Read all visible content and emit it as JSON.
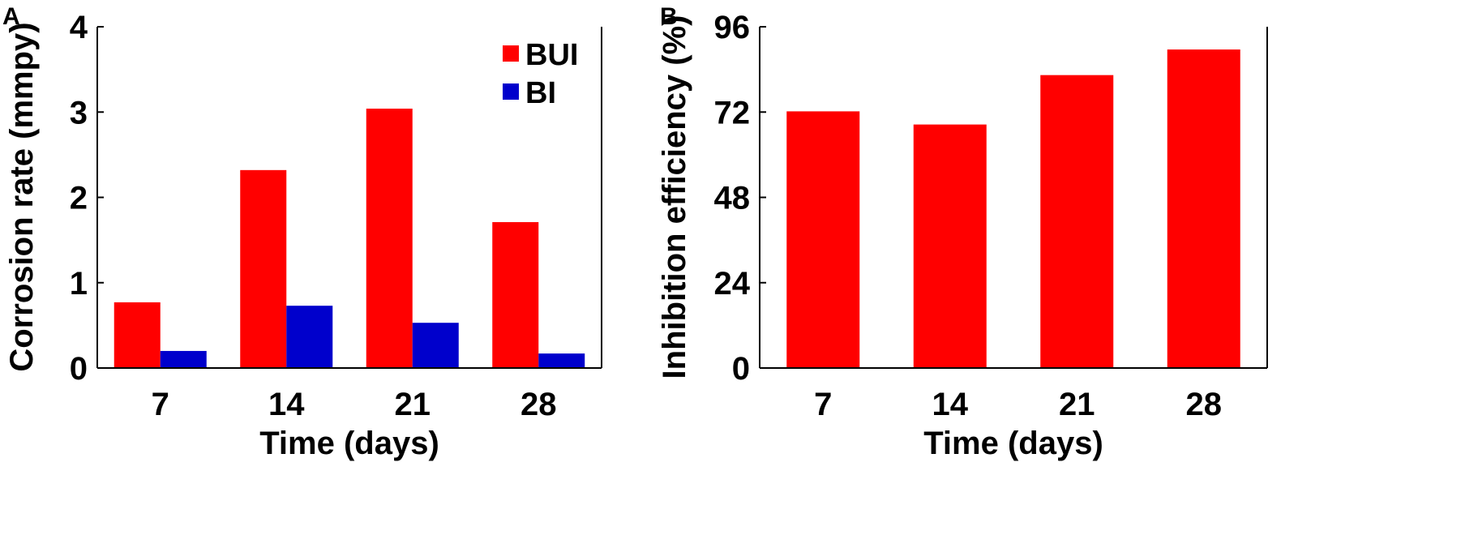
{
  "chart_data": [
    {
      "panel": "A",
      "type": "bar",
      "categories": [
        "7",
        "14",
        "21",
        "28"
      ],
      "xlabel": "Time (days)",
      "ylabel": "Corrosion rate (mmpy)",
      "ylim": [
        0,
        4
      ],
      "yticks": [
        "0",
        "1",
        "2",
        "3",
        "4"
      ],
      "legend_position": "top-right",
      "series": [
        {
          "name": "BUI",
          "color": "#ff0000",
          "values": [
            0.77,
            2.32,
            3.04,
            1.71
          ]
        },
        {
          "name": "BI",
          "color": "#0000cc",
          "values": [
            0.2,
            0.73,
            0.53,
            0.17
          ]
        }
      ]
    },
    {
      "panel": "B",
      "type": "bar",
      "categories": [
        "7",
        "14",
        "21",
        "28"
      ],
      "xlabel": "Time (days)",
      "ylabel": "Inhibition efficiency (%)",
      "ylim": [
        0,
        96
      ],
      "yticks": [
        "0",
        "24",
        "48",
        "72",
        "96"
      ],
      "series": [
        {
          "color": "#ff0000",
          "values": [
            72.2,
            68.5,
            82.4,
            89.6
          ]
        }
      ]
    }
  ]
}
